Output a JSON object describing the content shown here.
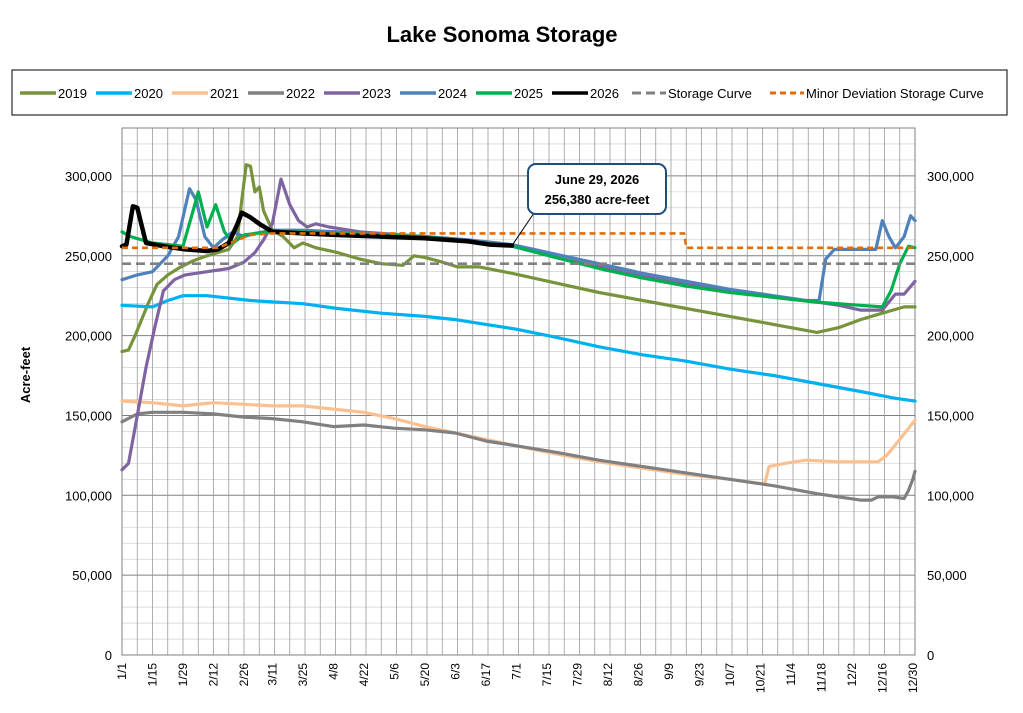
{
  "chart_data": {
    "type": "line",
    "title": "Lake Sonoma Storage",
    "ylabel": "Acre-feet",
    "xlabel": "",
    "ylim": [
      0,
      330000
    ],
    "y_ticks": [
      "0",
      "50,000",
      "100,000",
      "150,000",
      "200,000",
      "250,000",
      "300,000"
    ],
    "y_tick_values": [
      0,
      50000,
      100000,
      150000,
      200000,
      250000,
      300000
    ],
    "x_ticks": [
      "1/1",
      "1/15",
      "1/29",
      "2/12",
      "2/26",
      "3/11",
      "3/25",
      "4/8",
      "4/22",
      "5/6",
      "5/20",
      "6/3",
      "6/17",
      "7/1",
      "7/15",
      "7/29",
      "8/12",
      "8/26",
      "9/9",
      "9/23",
      "10/7",
      "10/21",
      "11/4",
      "11/18",
      "12/2",
      "12/16",
      "12/30"
    ],
    "x_tick_days": [
      1,
      15,
      29,
      43,
      57,
      70,
      84,
      98,
      112,
      126,
      140,
      154,
      168,
      182,
      196,
      210,
      224,
      238,
      252,
      266,
      280,
      294,
      308,
      322,
      336,
      350,
      364
    ],
    "x_range_days": [
      1,
      365
    ],
    "grid": true,
    "legend_position": "top",
    "annotation": {
      "line1": "June 29, 2026",
      "line2": "256,380 acre-feet",
      "point": [
        180,
        256380
      ]
    },
    "series": [
      {
        "name": "2019",
        "color": "#77933c",
        "dash": "solid",
        "points": [
          [
            1,
            190000
          ],
          [
            4,
            191000
          ],
          [
            7,
            200000
          ],
          [
            10,
            210000
          ],
          [
            13,
            220000
          ],
          [
            17,
            232000
          ],
          [
            22,
            238000
          ],
          [
            28,
            243000
          ],
          [
            34,
            247000
          ],
          [
            40,
            250000
          ],
          [
            45,
            252000
          ],
          [
            50,
            254000
          ],
          [
            54,
            262000
          ],
          [
            56,
            285000
          ],
          [
            58,
            307000
          ],
          [
            60,
            306000
          ],
          [
            62,
            290000
          ],
          [
            64,
            293000
          ],
          [
            66,
            278000
          ],
          [
            70,
            266000
          ],
          [
            75,
            262000
          ],
          [
            80,
            255000
          ],
          [
            84,
            258000
          ],
          [
            90,
            255000
          ],
          [
            100,
            252000
          ],
          [
            110,
            248000
          ],
          [
            120,
            245000
          ],
          [
            130,
            244000
          ],
          [
            135,
            250000
          ],
          [
            140,
            249000
          ],
          [
            148,
            246000
          ],
          [
            155,
            243000
          ],
          [
            165,
            243000
          ],
          [
            180,
            239000
          ],
          [
            200,
            233000
          ],
          [
            220,
            227000
          ],
          [
            240,
            222000
          ],
          [
            260,
            217000
          ],
          [
            280,
            212000
          ],
          [
            300,
            207000
          ],
          [
            320,
            202000
          ],
          [
            330,
            205000
          ],
          [
            340,
            210000
          ],
          [
            350,
            214000
          ],
          [
            360,
            218000
          ],
          [
            365,
            218000
          ]
        ]
      },
      {
        "name": "2020",
        "color": "#00b0f0",
        "dash": "solid",
        "points": [
          [
            1,
            219000
          ],
          [
            15,
            218000
          ],
          [
            22,
            222000
          ],
          [
            29,
            225000
          ],
          [
            40,
            225000
          ],
          [
            60,
            222000
          ],
          [
            84,
            220000
          ],
          [
            100,
            217000
          ],
          [
            120,
            214000
          ],
          [
            140,
            212000
          ],
          [
            154,
            210000
          ],
          [
            168,
            207000
          ],
          [
            182,
            204000
          ],
          [
            200,
            199000
          ],
          [
            220,
            193000
          ],
          [
            240,
            188000
          ],
          [
            260,
            184000
          ],
          [
            280,
            179000
          ],
          [
            300,
            175000
          ],
          [
            320,
            170000
          ],
          [
            340,
            165000
          ],
          [
            355,
            161000
          ],
          [
            365,
            159000
          ]
        ]
      },
      {
        "name": "2021",
        "color": "#fac090",
        "dash": "solid",
        "points": [
          [
            1,
            159000
          ],
          [
            15,
            158000
          ],
          [
            29,
            156000
          ],
          [
            43,
            158000
          ],
          [
            57,
            157000
          ],
          [
            70,
            156000
          ],
          [
            84,
            156000
          ],
          [
            98,
            154000
          ],
          [
            112,
            152000
          ],
          [
            126,
            148000
          ],
          [
            140,
            143000
          ],
          [
            154,
            139000
          ],
          [
            168,
            135000
          ],
          [
            182,
            131000
          ],
          [
            200,
            126000
          ],
          [
            220,
            121000
          ],
          [
            240,
            117000
          ],
          [
            260,
            113000
          ],
          [
            280,
            110000
          ],
          [
            296,
            107000
          ],
          [
            298,
            118000
          ],
          [
            305,
            120000
          ],
          [
            315,
            122000
          ],
          [
            330,
            121000
          ],
          [
            345,
            121000
          ],
          [
            348,
            121000
          ],
          [
            352,
            125000
          ],
          [
            358,
            135000
          ],
          [
            365,
            147000
          ]
        ]
      },
      {
        "name": "2022",
        "color": "#808080",
        "dash": "solid",
        "points": [
          [
            1,
            146000
          ],
          [
            8,
            151000
          ],
          [
            15,
            152000
          ],
          [
            29,
            152000
          ],
          [
            43,
            151000
          ],
          [
            57,
            149000
          ],
          [
            70,
            148000
          ],
          [
            84,
            146000
          ],
          [
            98,
            143000
          ],
          [
            112,
            144000
          ],
          [
            126,
            142000
          ],
          [
            140,
            141000
          ],
          [
            154,
            139000
          ],
          [
            168,
            134000
          ],
          [
            182,
            131000
          ],
          [
            200,
            127000
          ],
          [
            220,
            122000
          ],
          [
            240,
            118000
          ],
          [
            260,
            114000
          ],
          [
            280,
            110000
          ],
          [
            300,
            106000
          ],
          [
            320,
            101000
          ],
          [
            330,
            99000
          ],
          [
            340,
            97000
          ],
          [
            345,
            97000
          ],
          [
            348,
            99000
          ],
          [
            355,
            99000
          ],
          [
            360,
            98000
          ],
          [
            362,
            103000
          ],
          [
            364,
            110000
          ],
          [
            365,
            115000
          ]
        ]
      },
      {
        "name": "2023",
        "color": "#8064a2",
        "dash": "solid",
        "points": [
          [
            1,
            116000
          ],
          [
            4,
            120000
          ],
          [
            8,
            150000
          ],
          [
            12,
            180000
          ],
          [
            16,
            205000
          ],
          [
            20,
            228000
          ],
          [
            25,
            235000
          ],
          [
            30,
            238000
          ],
          [
            40,
            240000
          ],
          [
            50,
            242000
          ],
          [
            57,
            246000
          ],
          [
            62,
            252000
          ],
          [
            66,
            260000
          ],
          [
            70,
            270000
          ],
          [
            74,
            298000
          ],
          [
            78,
            282000
          ],
          [
            82,
            272000
          ],
          [
            86,
            268000
          ],
          [
            90,
            270000
          ],
          [
            96,
            268000
          ],
          [
            110,
            265000
          ],
          [
            130,
            263000
          ],
          [
            150,
            261000
          ],
          [
            170,
            258000
          ],
          [
            182,
            256000
          ],
          [
            200,
            249000
          ],
          [
            220,
            243000
          ],
          [
            240,
            237000
          ],
          [
            260,
            232000
          ],
          [
            280,
            228000
          ],
          [
            300,
            224000
          ],
          [
            320,
            221000
          ],
          [
            330,
            219000
          ],
          [
            340,
            216000
          ],
          [
            350,
            216000
          ],
          [
            356,
            226000
          ],
          [
            360,
            226000
          ],
          [
            365,
            234000
          ]
        ]
      },
      {
        "name": "2024",
        "color": "#4f81bd",
        "dash": "solid",
        "points": [
          [
            1,
            235000
          ],
          [
            8,
            238000
          ],
          [
            15,
            240000
          ],
          [
            22,
            250000
          ],
          [
            27,
            262000
          ],
          [
            32,
            292000
          ],
          [
            35,
            285000
          ],
          [
            39,
            262000
          ],
          [
            43,
            255000
          ],
          [
            47,
            260000
          ],
          [
            52,
            265000
          ],
          [
            57,
            262000
          ],
          [
            62,
            264000
          ],
          [
            70,
            266000
          ],
          [
            84,
            266000
          ],
          [
            100,
            265000
          ],
          [
            120,
            263000
          ],
          [
            140,
            262000
          ],
          [
            160,
            260000
          ],
          [
            180,
            257000
          ],
          [
            200,
            251000
          ],
          [
            220,
            245000
          ],
          [
            240,
            239000
          ],
          [
            260,
            234000
          ],
          [
            280,
            229000
          ],
          [
            300,
            225000
          ],
          [
            315,
            222000
          ],
          [
            321,
            222000
          ],
          [
            324,
            248000
          ],
          [
            328,
            254000
          ],
          [
            340,
            254000
          ],
          [
            347,
            254000
          ],
          [
            350,
            272000
          ],
          [
            353,
            262000
          ],
          [
            356,
            255000
          ],
          [
            360,
            262000
          ],
          [
            363,
            275000
          ],
          [
            365,
            272000
          ]
        ]
      },
      {
        "name": "2025",
        "color": "#00b050",
        "dash": "solid",
        "points": [
          [
            1,
            265000
          ],
          [
            5,
            262000
          ],
          [
            15,
            258000
          ],
          [
            29,
            256000
          ],
          [
            34,
            280000
          ],
          [
            36,
            290000
          ],
          [
            40,
            268000
          ],
          [
            44,
            282000
          ],
          [
            48,
            265000
          ],
          [
            52,
            258000
          ],
          [
            57,
            263000
          ],
          [
            62,
            264000
          ],
          [
            70,
            265000
          ],
          [
            84,
            265000
          ],
          [
            100,
            264000
          ],
          [
            120,
            263000
          ],
          [
            140,
            262000
          ],
          [
            160,
            259000
          ],
          [
            180,
            256000
          ],
          [
            200,
            249000
          ],
          [
            220,
            242000
          ],
          [
            240,
            236000
          ],
          [
            260,
            231000
          ],
          [
            280,
            227000
          ],
          [
            300,
            224000
          ],
          [
            320,
            221000
          ],
          [
            340,
            219000
          ],
          [
            350,
            218000
          ],
          [
            354,
            228000
          ],
          [
            358,
            245000
          ],
          [
            362,
            256000
          ],
          [
            365,
            255000
          ]
        ]
      },
      {
        "name": "2026",
        "color": "#000000",
        "dash": "solid",
        "points": [
          [
            1,
            256000
          ],
          [
            3,
            257000
          ],
          [
            6,
            281000
          ],
          [
            8,
            280000
          ],
          [
            12,
            258000
          ],
          [
            20,
            256000
          ],
          [
            30,
            254000
          ],
          [
            40,
            253000
          ],
          [
            45,
            254000
          ],
          [
            50,
            258000
          ],
          [
            54,
            270000
          ],
          [
            56,
            277000
          ],
          [
            60,
            274000
          ],
          [
            64,
            270000
          ],
          [
            70,
            265000
          ],
          [
            84,
            264000
          ],
          [
            100,
            263000
          ],
          [
            120,
            262000
          ],
          [
            140,
            261000
          ],
          [
            160,
            259000
          ],
          [
            170,
            257000
          ],
          [
            180,
            256380
          ]
        ]
      },
      {
        "name": "Storage Curve",
        "color": "#808080",
        "dash": "long",
        "points": [
          [
            1,
            245000
          ],
          [
            365,
            245000
          ]
        ]
      },
      {
        "name": "Minor Deviation Storage Curve",
        "color": "#e46c0a",
        "dash": "short",
        "points": [
          [
            1,
            255000
          ],
          [
            30,
            255000
          ],
          [
            45,
            255000
          ],
          [
            58,
            262000
          ],
          [
            60,
            263000
          ],
          [
            70,
            264000
          ],
          [
            250,
            264000
          ],
          [
            259,
            264000
          ],
          [
            260,
            255000
          ],
          [
            365,
            255000
          ]
        ]
      }
    ]
  }
}
